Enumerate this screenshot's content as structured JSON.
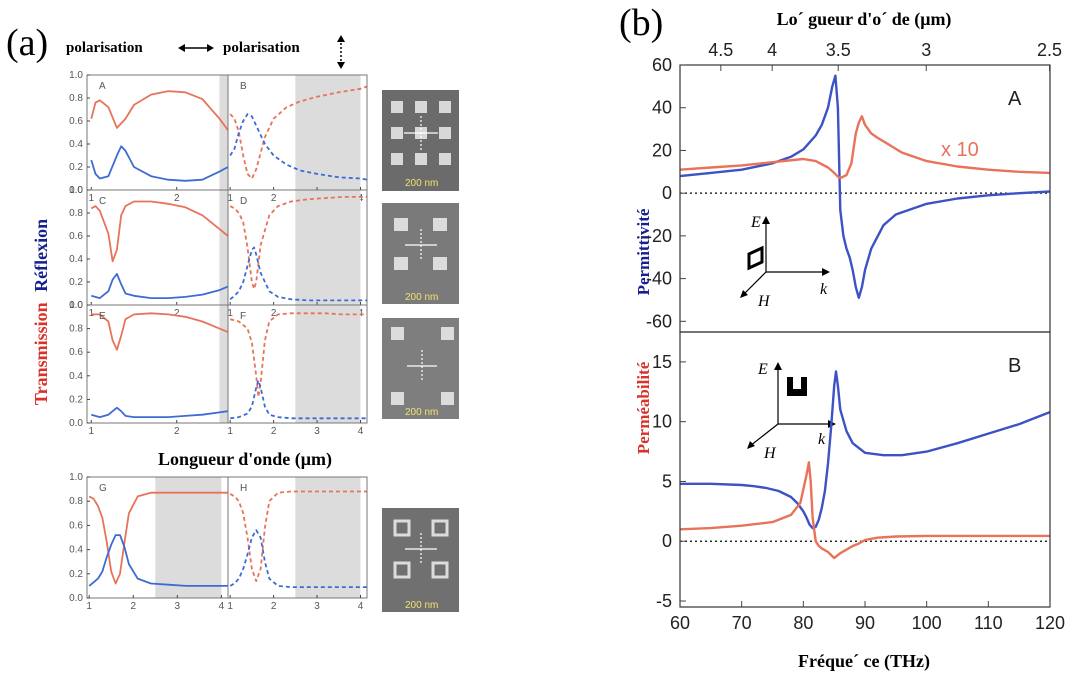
{
  "panel_a": {
    "letter": "(a)",
    "pol_label_1": "polarisation",
    "pol_label_2": "polarisation",
    "ylabel_transmission": "Transmission",
    "ylabel_reflexion": "Réflexion",
    "xlabel": "Longueur d'onde (μm)",
    "scale_label": "200 nm"
  },
  "panel_b": {
    "letter": "(b)",
    "top_xlabel": "Lo´ gueur d'o´ de (μm)",
    "bottom_xlabel": "Fréque´ ce (THz)",
    "ylabel_permeabilite": "Perméabilité",
    "ylabel_permittivite": "Permittivité",
    "x10_label": "x 10"
  },
  "chart_data": [
    {
      "id": "A",
      "type": "line",
      "xlabel": "Longueur d'onde (μm)",
      "ylabel": "Transmission / Réflexion",
      "xlim": [
        0.95,
        2.6
      ],
      "ylim": [
        0,
        1.0
      ],
      "xticks": [
        1,
        2
      ],
      "yticks": [
        0.0,
        0.2,
        0.4,
        0.6,
        0.8,
        1.0
      ],
      "ytick_labels": [
        "0.0",
        "0.2",
        "0.4",
        "0.6",
        "0.8",
        "1.0"
      ],
      "shaded_x": [
        2.5,
        2.6
      ],
      "series": [
        {
          "color": "#e8735a",
          "style": "solid",
          "x": [
            1.0,
            1.05,
            1.1,
            1.2,
            1.3,
            1.4,
            1.5,
            1.7,
            1.9,
            2.1,
            2.3,
            2.5,
            2.6
          ],
          "y": [
            0.62,
            0.76,
            0.78,
            0.72,
            0.54,
            0.62,
            0.74,
            0.83,
            0.86,
            0.85,
            0.79,
            0.62,
            0.52
          ]
        },
        {
          "color": "#3d6bd6",
          "style": "solid",
          "x": [
            1.0,
            1.05,
            1.1,
            1.2,
            1.3,
            1.35,
            1.4,
            1.5,
            1.7,
            1.9,
            2.1,
            2.3,
            2.5,
            2.6
          ],
          "y": [
            0.26,
            0.14,
            0.1,
            0.12,
            0.3,
            0.38,
            0.34,
            0.2,
            0.12,
            0.09,
            0.08,
            0.09,
            0.16,
            0.2
          ]
        }
      ]
    },
    {
      "id": "B",
      "type": "line",
      "xlim": [
        0.95,
        4.15
      ],
      "ylim": [
        0,
        1.0
      ],
      "xticks": [
        1,
        2,
        3,
        4
      ],
      "shaded_x": [
        2.5,
        4.0
      ],
      "series": [
        {
          "color": "#e8735a",
          "style": "dashed",
          "x": [
            1.0,
            1.1,
            1.2,
            1.3,
            1.4,
            1.5,
            1.6,
            1.8,
            2.0,
            2.3,
            2.6,
            3.0,
            3.5,
            4.0,
            4.15
          ],
          "y": [
            0.66,
            0.62,
            0.5,
            0.3,
            0.14,
            0.1,
            0.18,
            0.46,
            0.62,
            0.72,
            0.77,
            0.81,
            0.85,
            0.88,
            0.9
          ]
        },
        {
          "color": "#3d6bd6",
          "style": "dashed",
          "x": [
            1.0,
            1.1,
            1.2,
            1.3,
            1.4,
            1.5,
            1.6,
            1.8,
            2.0,
            2.3,
            2.6,
            3.0,
            3.5,
            4.0,
            4.15
          ],
          "y": [
            0.3,
            0.36,
            0.5,
            0.6,
            0.66,
            0.64,
            0.56,
            0.4,
            0.3,
            0.22,
            0.17,
            0.14,
            0.11,
            0.1,
            0.09
          ]
        }
      ]
    },
    {
      "id": "C",
      "type": "line",
      "xlim": [
        0.95,
        2.6
      ],
      "ylim": [
        0,
        1.0
      ],
      "xticks": [
        1,
        2
      ],
      "yticks": [
        0.0,
        0.2,
        0.4,
        0.6,
        0.8,
        1.0
      ],
      "ytick_labels": [
        "0.0",
        "0.2",
        "0.4",
        "0.6",
        "0.8",
        "1.0"
      ],
      "shaded_x": [
        2.5,
        2.6
      ],
      "series": [
        {
          "color": "#e8735a",
          "style": "solid",
          "x": [
            1.0,
            1.05,
            1.1,
            1.2,
            1.25,
            1.3,
            1.35,
            1.4,
            1.5,
            1.7,
            1.9,
            2.1,
            2.3,
            2.5,
            2.6
          ],
          "y": [
            0.84,
            0.86,
            0.82,
            0.62,
            0.38,
            0.48,
            0.78,
            0.86,
            0.9,
            0.9,
            0.88,
            0.85,
            0.78,
            0.66,
            0.6
          ]
        },
        {
          "color": "#3d6bd6",
          "style": "solid",
          "x": [
            1.0,
            1.1,
            1.2,
            1.25,
            1.3,
            1.35,
            1.4,
            1.5,
            1.7,
            1.9,
            2.1,
            2.3,
            2.5,
            2.6
          ],
          "y": [
            0.08,
            0.06,
            0.12,
            0.22,
            0.27,
            0.18,
            0.1,
            0.08,
            0.06,
            0.06,
            0.07,
            0.09,
            0.13,
            0.16
          ]
        }
      ]
    },
    {
      "id": "D",
      "type": "line",
      "xlim": [
        0.95,
        4.15
      ],
      "ylim": [
        0,
        1.0
      ],
      "xticks": [
        1,
        2,
        3,
        4
      ],
      "shaded_x": [
        2.5,
        4.0
      ],
      "series": [
        {
          "color": "#e8735a",
          "style": "dashed",
          "x": [
            1.0,
            1.1,
            1.2,
            1.3,
            1.4,
            1.5,
            1.55,
            1.6,
            1.7,
            1.9,
            2.1,
            2.4,
            2.8,
            3.2,
            3.6,
            4.0,
            4.15
          ],
          "y": [
            0.86,
            0.84,
            0.8,
            0.72,
            0.5,
            0.2,
            0.14,
            0.2,
            0.52,
            0.78,
            0.86,
            0.9,
            0.92,
            0.93,
            0.94,
            0.94,
            0.94
          ]
        },
        {
          "color": "#3d6bd6",
          "style": "dashed",
          "x": [
            1.0,
            1.1,
            1.2,
            1.3,
            1.4,
            1.5,
            1.55,
            1.6,
            1.7,
            1.9,
            2.1,
            2.4,
            2.8,
            3.2,
            3.6,
            4.0,
            4.15
          ],
          "y": [
            0.05,
            0.08,
            0.12,
            0.2,
            0.34,
            0.48,
            0.5,
            0.44,
            0.28,
            0.12,
            0.07,
            0.05,
            0.04,
            0.04,
            0.04,
            0.04,
            0.04
          ]
        }
      ]
    },
    {
      "id": "E",
      "type": "line",
      "xlim": [
        0.95,
        2.6
      ],
      "ylim": [
        0,
        1.0
      ],
      "xticks": [
        1,
        2
      ],
      "yticks": [
        0.0,
        0.2,
        0.4,
        0.6,
        0.8,
        1.0
      ],
      "ytick_labels": [
        "0.0",
        "0.2",
        "0.4",
        "0.6",
        "0.8",
        "1.0"
      ],
      "shaded_x": [
        2.5,
        2.6
      ],
      "series": [
        {
          "color": "#e8735a",
          "style": "solid",
          "x": [
            1.0,
            1.1,
            1.2,
            1.25,
            1.3,
            1.35,
            1.4,
            1.5,
            1.7,
            1.9,
            2.1,
            2.3,
            2.5,
            2.6
          ],
          "y": [
            0.92,
            0.92,
            0.86,
            0.7,
            0.62,
            0.74,
            0.88,
            0.92,
            0.93,
            0.92,
            0.9,
            0.86,
            0.8,
            0.77
          ]
        },
        {
          "color": "#3d6bd6",
          "style": "solid",
          "x": [
            1.0,
            1.1,
            1.2,
            1.25,
            1.3,
            1.35,
            1.4,
            1.5,
            1.7,
            1.9,
            2.1,
            2.3,
            2.5,
            2.6
          ],
          "y": [
            0.07,
            0.05,
            0.07,
            0.1,
            0.13,
            0.1,
            0.06,
            0.05,
            0.05,
            0.05,
            0.06,
            0.07,
            0.09,
            0.1
          ]
        }
      ]
    },
    {
      "id": "F",
      "type": "line",
      "xlim": [
        0.95,
        4.15
      ],
      "ylim": [
        0,
        1.0
      ],
      "xticks": [
        1,
        2,
        3,
        4
      ],
      "shaded_x": [
        2.5,
        4.0
      ],
      "series": [
        {
          "color": "#e8735a",
          "style": "dashed",
          "x": [
            1.0,
            1.2,
            1.4,
            1.5,
            1.6,
            1.65,
            1.7,
            1.8,
            1.9,
            2.1,
            2.4,
            2.8,
            3.2,
            3.6,
            4.0,
            4.15
          ],
          "y": [
            0.88,
            0.86,
            0.8,
            0.68,
            0.4,
            0.22,
            0.34,
            0.7,
            0.86,
            0.92,
            0.93,
            0.93,
            0.93,
            0.92,
            0.92,
            0.92
          ]
        },
        {
          "color": "#3d6bd6",
          "style": "dashed",
          "x": [
            1.0,
            1.2,
            1.4,
            1.5,
            1.6,
            1.65,
            1.7,
            1.8,
            1.9,
            2.1,
            2.4,
            2.8,
            3.2,
            3.6,
            4.0,
            4.15
          ],
          "y": [
            0.04,
            0.05,
            0.08,
            0.14,
            0.3,
            0.36,
            0.3,
            0.14,
            0.07,
            0.05,
            0.04,
            0.04,
            0.04,
            0.04,
            0.04,
            0.04
          ]
        }
      ]
    },
    {
      "id": "G",
      "type": "line",
      "xlim": [
        0.95,
        4.15
      ],
      "ylim": [
        0,
        1.0
      ],
      "xticks": [
        1,
        2,
        3,
        4
      ],
      "yticks": [
        0.0,
        0.2,
        0.4,
        0.6,
        0.8,
        1.0
      ],
      "ytick_labels": [
        "0.0",
        "0.2",
        "0.4",
        "0.6",
        "0.8",
        "1.0"
      ],
      "shaded_x": [
        2.5,
        4.0
      ],
      "series": [
        {
          "color": "#e8735a",
          "style": "solid",
          "x": [
            1.0,
            1.1,
            1.2,
            1.3,
            1.4,
            1.5,
            1.6,
            1.7,
            1.8,
            1.9,
            2.1,
            2.4,
            2.8,
            3.2,
            3.6,
            4.0,
            4.15
          ],
          "y": [
            0.84,
            0.82,
            0.76,
            0.66,
            0.46,
            0.22,
            0.12,
            0.2,
            0.46,
            0.7,
            0.84,
            0.87,
            0.87,
            0.87,
            0.87,
            0.87,
            0.87
          ]
        },
        {
          "color": "#3d6bd6",
          "style": "solid",
          "x": [
            1.0,
            1.1,
            1.2,
            1.3,
            1.4,
            1.5,
            1.6,
            1.7,
            1.8,
            1.9,
            2.1,
            2.4,
            2.8,
            3.2,
            3.6,
            4.0,
            4.15
          ],
          "y": [
            0.1,
            0.13,
            0.16,
            0.22,
            0.34,
            0.44,
            0.52,
            0.52,
            0.42,
            0.28,
            0.16,
            0.12,
            0.11,
            0.1,
            0.1,
            0.1,
            0.1
          ]
        }
      ]
    },
    {
      "id": "H",
      "type": "line",
      "xlim": [
        0.95,
        4.15
      ],
      "ylim": [
        0,
        1.0
      ],
      "xticks": [
        1,
        2,
        3,
        4
      ],
      "shaded_x": [
        2.5,
        4.0
      ],
      "series": [
        {
          "color": "#e8735a",
          "style": "dashed",
          "x": [
            1.0,
            1.1,
            1.2,
            1.3,
            1.4,
            1.5,
            1.6,
            1.7,
            1.8,
            1.9,
            2.1,
            2.4,
            2.8,
            3.2,
            3.6,
            4.0,
            4.15
          ],
          "y": [
            0.86,
            0.84,
            0.8,
            0.7,
            0.5,
            0.24,
            0.14,
            0.24,
            0.58,
            0.8,
            0.87,
            0.88,
            0.88,
            0.88,
            0.88,
            0.88,
            0.88
          ]
        },
        {
          "color": "#3d6bd6",
          "style": "dashed",
          "x": [
            1.0,
            1.1,
            1.2,
            1.3,
            1.4,
            1.5,
            1.6,
            1.7,
            1.8,
            1.9,
            2.1,
            2.4,
            2.8,
            3.2,
            3.6,
            4.0,
            4.15
          ],
          "y": [
            0.1,
            0.12,
            0.16,
            0.24,
            0.36,
            0.5,
            0.56,
            0.5,
            0.3,
            0.16,
            0.1,
            0.09,
            0.09,
            0.09,
            0.09,
            0.09,
            0.09
          ]
        }
      ]
    },
    {
      "id": "A",
      "type": "line",
      "xlabel": "Fréque´ ce (THz)",
      "ylabel": "Permittivité",
      "xlim": [
        60,
        120
      ],
      "ylim": [
        -65,
        60
      ],
      "yticks": [
        -60,
        -40,
        -20,
        0,
        20,
        40,
        60
      ],
      "top_axis_ticks": [
        4.5,
        4,
        3.5,
        3,
        2.5
      ],
      "zero_line": true,
      "annotation": "x 10",
      "series": [
        {
          "color": "#3d52c4",
          "style": "solid",
          "x": [
            60,
            65,
            70,
            75,
            78,
            80,
            82,
            83,
            84,
            84.7,
            85.2,
            85.6,
            86,
            86.5,
            87,
            87.5,
            88,
            88.5,
            89,
            89.5,
            90,
            91,
            93,
            95,
            100,
            105,
            110,
            115,
            120
          ],
          "y": [
            8,
            9.5,
            11,
            14,
            17,
            20.5,
            27,
            32,
            40,
            50,
            55,
            40,
            -8,
            -20,
            -26,
            -30,
            -36,
            -44,
            -49,
            -44,
            -36,
            -26,
            -15,
            -10,
            -5,
            -2.5,
            -1,
            0,
            0.8
          ]
        },
        {
          "color": "#e8735a",
          "style": "solid",
          "x": [
            60,
            65,
            70,
            75,
            80,
            82,
            84,
            85,
            85.5,
            86,
            87,
            87.8,
            88.5,
            89,
            89.5,
            90,
            91,
            92,
            94,
            96,
            100,
            105,
            110,
            115,
            120
          ],
          "y": [
            11,
            12,
            13,
            14.5,
            16,
            15,
            12,
            9.5,
            8,
            7,
            8.5,
            14,
            28,
            33,
            36,
            32,
            28,
            26,
            22.5,
            19,
            15,
            12.5,
            11,
            10,
            9.5
          ]
        }
      ]
    },
    {
      "id": "B",
      "type": "line",
      "xlabel": "Fréque´ ce (THz)",
      "ylabel": "Perméabilité",
      "xlim": [
        60,
        120
      ],
      "ylim": [
        -5.5,
        17.5
      ],
      "xticks": [
        60,
        70,
        80,
        90,
        100,
        110,
        120
      ],
      "yticks": [
        -5,
        0,
        5,
        10,
        15
      ],
      "zero_line": true,
      "series": [
        {
          "color": "#3d52c4",
          "style": "solid",
          "x": [
            60,
            65,
            70,
            72,
            74,
            76,
            78,
            79,
            80,
            80.5,
            81,
            81.5,
            82,
            82.5,
            83,
            83.5,
            84,
            84.5,
            85,
            85.3,
            85.6,
            86,
            87,
            88,
            90,
            93,
            96,
            100,
            105,
            110,
            115,
            118,
            120
          ],
          "y": [
            4.8,
            4.8,
            4.7,
            4.6,
            4.45,
            4.2,
            3.7,
            3.2,
            2.5,
            2,
            1.4,
            1.1,
            1.2,
            1.8,
            2.8,
            4.2,
            6.5,
            9.5,
            13,
            14.2,
            13,
            11,
            9.2,
            8.2,
            7.4,
            7.2,
            7.2,
            7.5,
            8.2,
            9,
            9.8,
            10.4,
            10.8
          ]
        },
        {
          "color": "#e8735a",
          "style": "solid",
          "x": [
            60,
            65,
            70,
            75,
            78,
            79.5,
            80.5,
            80.9,
            81.2,
            81.5,
            82,
            82.5,
            83,
            84,
            85,
            86,
            87,
            88,
            89,
            90,
            92,
            95,
            100,
            110,
            120
          ],
          "y": [
            1,
            1.1,
            1.3,
            1.6,
            2.2,
            3.2,
            5.5,
            6.6,
            5,
            2,
            0,
            -0.4,
            -0.6,
            -0.9,
            -1.4,
            -1,
            -0.7,
            -0.4,
            -0.2,
            0.1,
            0.3,
            0.4,
            0.45,
            0.45,
            0.45
          ]
        }
      ]
    }
  ]
}
